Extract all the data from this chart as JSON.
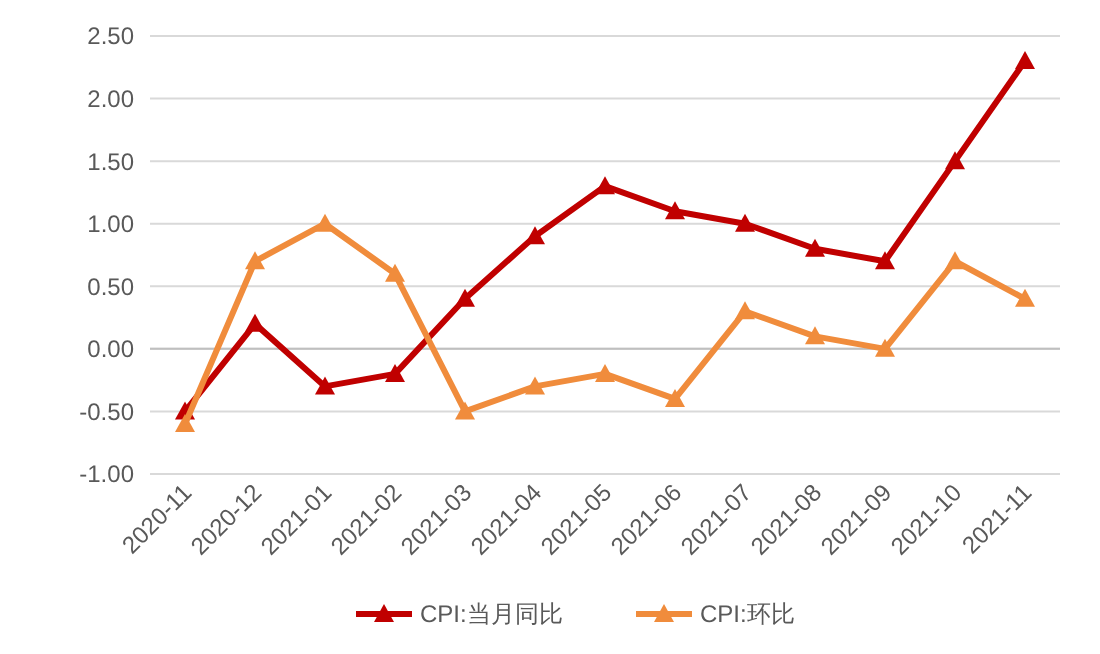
{
  "chart_data": {
    "type": "line",
    "categories": [
      "2020-11",
      "2020-12",
      "2021-01",
      "2021-02",
      "2021-03",
      "2021-04",
      "2021-05",
      "2021-06",
      "2021-07",
      "2021-08",
      "2021-09",
      "2021-10",
      "2021-11"
    ],
    "series": [
      {
        "name": "CPI:当月同比",
        "color": "#c00000",
        "values": [
          -0.5,
          0.2,
          -0.3,
          -0.2,
          0.4,
          0.9,
          1.3,
          1.1,
          1.0,
          0.8,
          0.7,
          1.5,
          2.3
        ]
      },
      {
        "name": "CPI:环比",
        "color": "#f08c3c",
        "values": [
          -0.6,
          0.7,
          1.0,
          0.6,
          -0.5,
          -0.3,
          -0.2,
          -0.4,
          0.3,
          0.1,
          0.0,
          0.7,
          0.4
        ]
      }
    ],
    "ylim": [
      -1,
      2.5
    ],
    "yticks": [
      {
        "value": -1,
        "label": "-1.00"
      },
      {
        "value": -0.5,
        "label": "-0.50"
      },
      {
        "value": 0,
        "label": "0.00"
      },
      {
        "value": 0.5,
        "label": "0.50"
      },
      {
        "value": 1,
        "label": "1.00"
      },
      {
        "value": 1.5,
        "label": "1.50"
      },
      {
        "value": 2,
        "label": "2.00"
      },
      {
        "value": 2.5,
        "label": "2.50"
      }
    ],
    "grid": "y",
    "legend": "bottom",
    "marker": "triangle",
    "line_style": "solid"
  }
}
